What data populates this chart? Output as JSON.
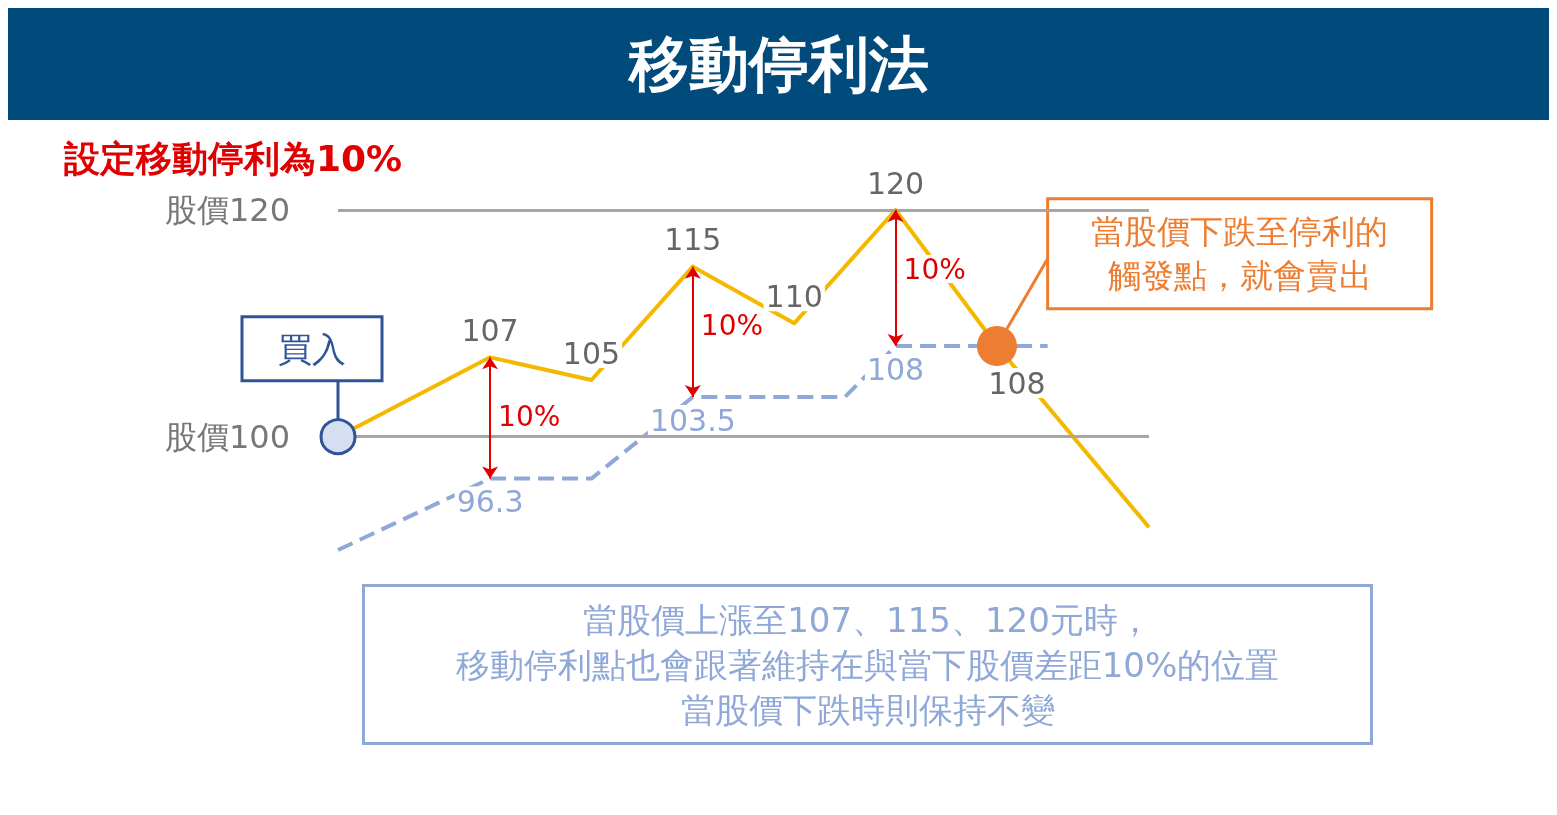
{
  "chart_data": {
    "type": "line",
    "title": "移動停利法",
    "categories": [
      null,
      null,
      null,
      null,
      null,
      null,
      null,
      null,
      null,
      null,
      null,
      null,
      null,
      null,
      null,
      null,
      null
    ],
    "series": [
      {
        "color": "#f5b800",
        "line_style": "solid",
        "values": [
          100,
          null,
          null,
          107,
          null,
          105,
          null,
          115,
          null,
          110,
          null,
          120,
          null,
          108,
          null,
          null,
          92
        ],
        "value_labels": [
          null,
          null,
          null,
          "107",
          null,
          "105",
          null,
          "115",
          null,
          "110",
          null,
          "120",
          null,
          "108",
          null,
          null,
          null
        ]
      },
      {
        "color": "#8fa8d8",
        "line_style": "dashed",
        "values": [
          90,
          null,
          null,
          96.3,
          null,
          96.3,
          null,
          103.5,
          null,
          null,
          103.5,
          108,
          null,
          null,
          108,
          null,
          null
        ],
        "value_labels": [
          null,
          null,
          null,
          "96.3",
          null,
          null,
          null,
          "103.5",
          null,
          null,
          null,
          "108",
          null,
          null,
          null,
          null,
          null
        ]
      }
    ],
    "ref_lines": [
      {
        "axis": "y",
        "value": 100,
        "label": "股價100",
        "color": "#a6a6a6"
      },
      {
        "axis": "y",
        "value": 120,
        "label": "股價120",
        "color": "#a6a6a6"
      }
    ],
    "marker": "none",
    "annotations": [
      "設定移動停利為10%",
      "10%",
      "10%",
      "10%",
      "買入",
      "當股價下跌至停利的",
      "觸發點，就會賣出",
      "當股價上漲至107、115、120元時，",
      "移動停利點也會跟著維持在與當下股價差距10%的位置",
      "當股價下跌時則保持不變"
    ]
  }
}
